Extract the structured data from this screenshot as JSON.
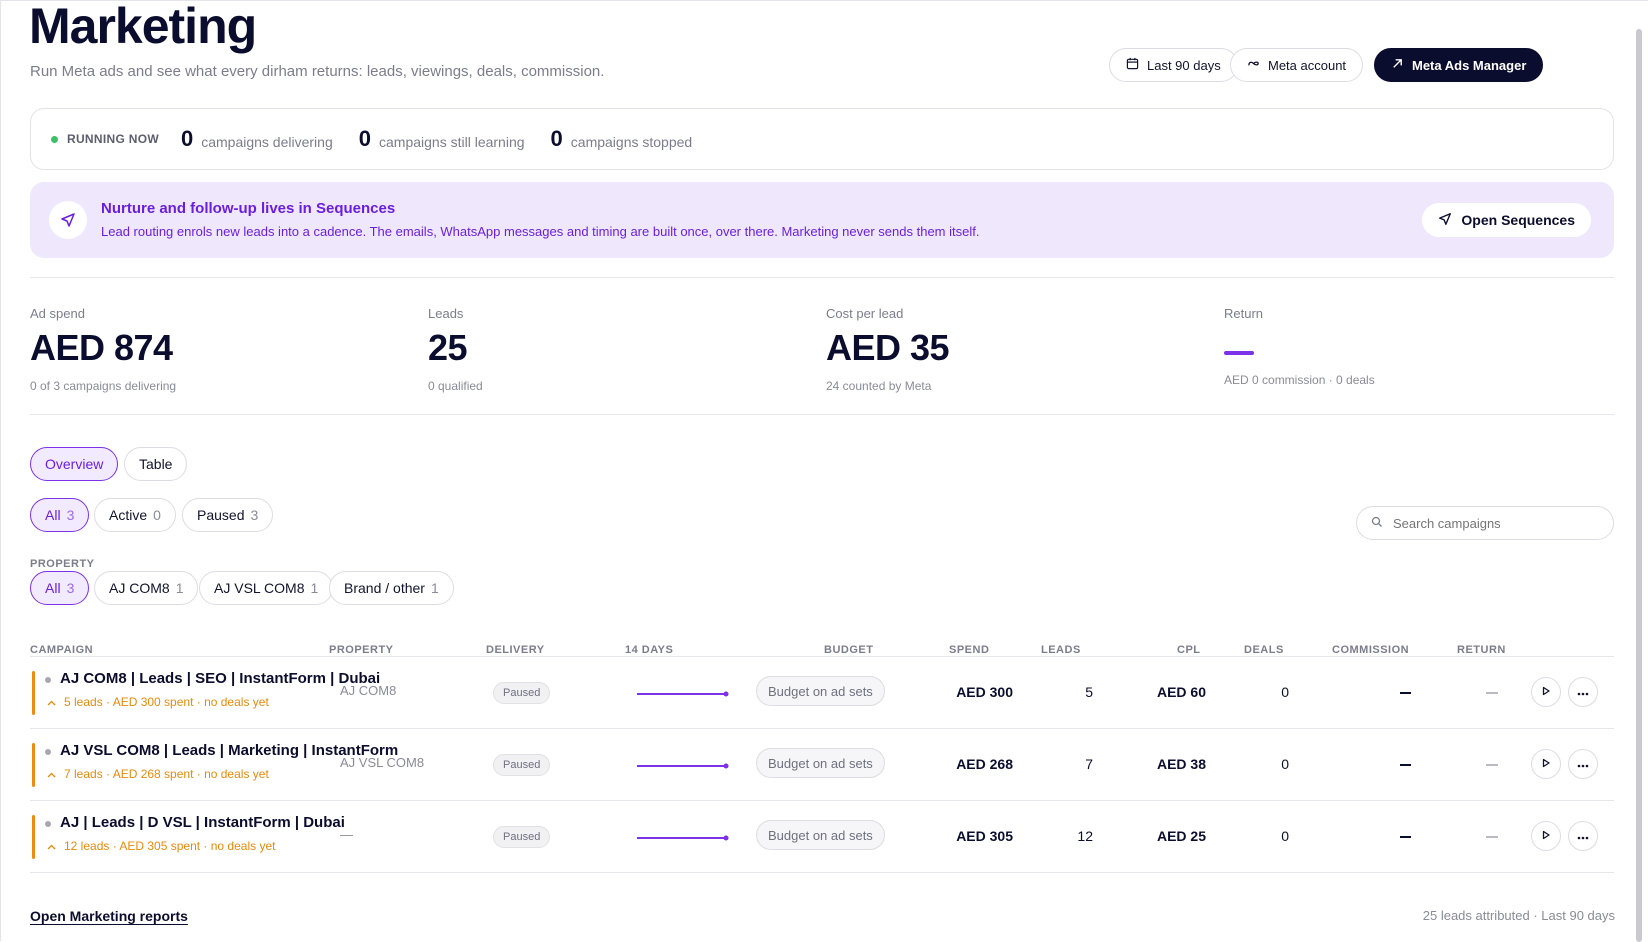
{
  "header": {
    "title": "Marketing",
    "subtitle": "Run Meta ads and see what every dirham returns: leads, viewings, deals, commission.",
    "date_range": "Last 90 days",
    "meta_account": "Meta account",
    "ads_manager": "Meta Ads Manager"
  },
  "running": {
    "label": "RUNNING NOW",
    "delivering_count": "0",
    "delivering_text": "campaigns delivering",
    "learning_count": "0",
    "learning_text": "campaigns still learning",
    "stopped_count": "0",
    "stopped_text": "campaigns stopped"
  },
  "banner": {
    "title": "Nurture and follow-up lives in Sequences",
    "text": "Lead routing enrols new leads into a cadence. The emails, WhatsApp messages and timing are built once, over there. Marketing never sends them itself.",
    "button": "Open Sequences"
  },
  "kpis": [
    {
      "label": "Ad spend",
      "value": "AED 874",
      "sub": "0 of 3 campaigns delivering"
    },
    {
      "label": "Leads",
      "value": "25",
      "sub": "0 qualified"
    },
    {
      "label": "Cost per lead",
      "value": "AED 35",
      "sub": "24 counted by Meta"
    },
    {
      "label": "Return",
      "value": "—",
      "sub": "AED 0 commission · 0 deals"
    }
  ],
  "view_tabs": [
    "Overview",
    "Table"
  ],
  "status_filters": [
    {
      "label": "All",
      "count": "3"
    },
    {
      "label": "Active",
      "count": "0"
    },
    {
      "label": "Paused",
      "count": "3"
    }
  ],
  "search_placeholder": "Search campaigns",
  "property_label": "PROPERTY",
  "property_filters": [
    {
      "label": "All",
      "count": "3"
    },
    {
      "label": "AJ COM8",
      "count": "1"
    },
    {
      "label": "AJ VSL COM8",
      "count": "1"
    },
    {
      "label": "Brand / other",
      "count": "1"
    }
  ],
  "table_headers": {
    "campaign": "CAMPAIGN",
    "property": "PROPERTY",
    "delivery": "DELIVERY",
    "days": "14 DAYS",
    "budget": "BUDGET",
    "spend": "SPEND",
    "leads": "LEADS",
    "cpl": "CPL",
    "deals": "DEALS",
    "commission": "COMMISSION",
    "return": "RETURN"
  },
  "rows": [
    {
      "name": "AJ COM8 | Leads | SEO | InstantForm | Dubai",
      "warning": "5 leads · AED 300 spent · no deals yet",
      "property": "AJ COM8",
      "delivery": "Paused",
      "budget": "Budget on ad sets",
      "spend": "AED 300",
      "leads": "5",
      "cpl": "AED 60",
      "deals": "0"
    },
    {
      "name": "AJ VSL COM8 | Leads | Marketing | InstantForm",
      "warning": "7 leads · AED 268 spent · no deals yet",
      "property": "AJ VSL COM8",
      "delivery": "Paused",
      "budget": "Budget on ad sets",
      "spend": "AED 268",
      "leads": "7",
      "cpl": "AED 38",
      "deals": "0"
    },
    {
      "name": "AJ | Leads | D VSL | InstantForm | Dubai",
      "warning": "12 leads · AED 305 spent · no deals yet",
      "property": "—",
      "delivery": "Paused",
      "budget": "Budget on ad sets",
      "spend": "AED 305",
      "leads": "12",
      "cpl": "AED 25",
      "deals": "0"
    }
  ],
  "footer": {
    "link": "Open Marketing reports",
    "summary": "25 leads attributed · Last 90 days"
  },
  "colors": {
    "accent": "#7c32e6",
    "banner_bg": "#efe8fd",
    "warning": "#e88a0c",
    "running_dot": "#3fbf6a"
  }
}
